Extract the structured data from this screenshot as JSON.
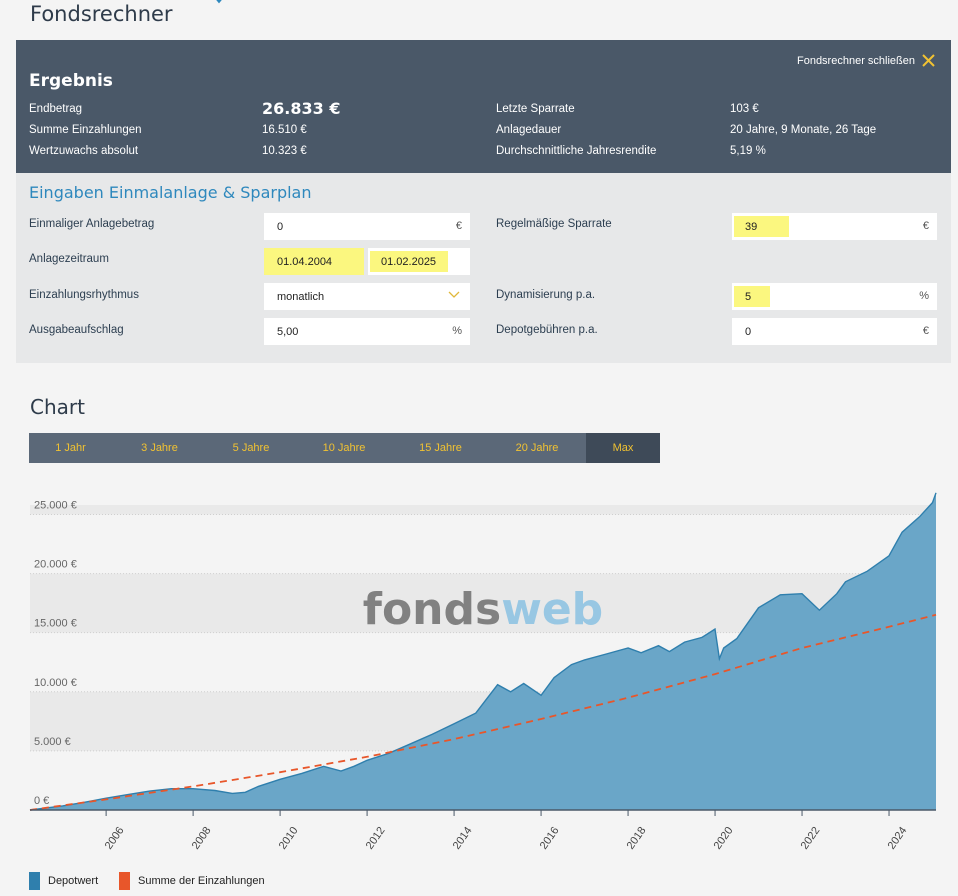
{
  "page": {
    "title": "Fondsrechner"
  },
  "result": {
    "title": "Ergebnis",
    "close_label": "Fondsrechner schließen",
    "endbetrag_label": "Endbetrag",
    "endbetrag_value": "26.833 €",
    "summe_label": "Summe Einzahlungen",
    "summe_value": "16.510 €",
    "wertzuwachs_label": "Wertzuwachs absolut",
    "wertzuwachs_value": "10.323 €",
    "letzte_label": "Letzte Sparrate",
    "letzte_value": "103 €",
    "dauer_label": "Anlagedauer",
    "dauer_value": "20 Jahre, 9 Monate, 26 Tage",
    "rendite_label": "Durchschnittliche Jahresrendite",
    "rendite_value": "5,19 %"
  },
  "inputs": {
    "title": "Eingaben Einmalanlage & Sparplan",
    "einmal_label": "Einmaliger Anlagebetrag",
    "einmal_value": "0",
    "einmal_unit": "€",
    "zeitraum_label": "Anlagezeitraum",
    "start_date": "01.04.2004",
    "end_date": "01.02.2025",
    "rhythmus_label": "Einzahlungsrhythmus",
    "rhythmus_value": "monatlich",
    "aufschlag_label": "Ausgabeaufschlag",
    "aufschlag_value": "5,00",
    "aufschlag_unit": "%",
    "sparrate_label": "Regelmäßige Sparrate",
    "sparrate_value": "39",
    "sparrate_unit": "€",
    "dynamik_label": "Dynamisierung p.a.",
    "dynamik_value": "5",
    "dynamik_unit": "%",
    "depot_label": "Depotgebühren p.a.",
    "depot_value": "0",
    "depot_unit": "€"
  },
  "chart_section": {
    "title": "Chart",
    "ranges": [
      "1 Jahr",
      "3 Jahre",
      "5 Jahre",
      "10 Jahre",
      "15 Jahre",
      "20 Jahre",
      "Max"
    ],
    "active_range": "Max",
    "watermark_dark": "fonds",
    "watermark_light": "web"
  },
  "colors": {
    "header_bg": "#4a5868",
    "accent_blue": "#2e88bd",
    "area_fill": "#6aa6c8",
    "area_line": "#2f7fad",
    "dashed_line": "#e8562a",
    "highlight": "#fbf77f",
    "range_text": "#f1c232"
  },
  "chart_data": {
    "type": "area",
    "x_ticks": [
      "2006",
      "2008",
      "2010",
      "2012",
      "2014",
      "2016",
      "2018",
      "2020",
      "2022",
      "2024"
    ],
    "y_ticks": [
      "0 €",
      "5.000 €",
      "10.000 €",
      "15.000 €",
      "20.000 €",
      "25.000 €"
    ],
    "ylim": [
      0,
      25800
    ],
    "xlim": [
      2004.25,
      2025.08
    ],
    "grid": true,
    "legend_position": "bottom-left",
    "series": [
      {
        "name": "Depotwert",
        "type": "area",
        "color": "#6aa6c8",
        "x": [
          2004.25,
          2005.0,
          2005.5,
          2006.0,
          2006.5,
          2007.0,
          2007.5,
          2008.0,
          2008.5,
          2008.9,
          2009.2,
          2009.5,
          2010.0,
          2010.5,
          2011.0,
          2011.4,
          2011.7,
          2012.0,
          2012.5,
          2013.0,
          2013.5,
          2014.0,
          2014.5,
          2015.0,
          2015.3,
          2015.6,
          2016.0,
          2016.3,
          2016.7,
          2017.0,
          2017.5,
          2018.0,
          2018.3,
          2018.7,
          2018.95,
          2019.3,
          2019.7,
          2020.0,
          2020.1,
          2020.2,
          2020.5,
          2021.0,
          2021.5,
          2022.0,
          2022.4,
          2022.8,
          2023.0,
          2023.5,
          2024.0,
          2024.3,
          2024.7,
          2025.0,
          2025.08
        ],
        "values": [
          0,
          350,
          650,
          1000,
          1300,
          1600,
          1800,
          1800,
          1650,
          1400,
          1500,
          2000,
          2600,
          3100,
          3700,
          3300,
          3700,
          4200,
          4800,
          5600,
          6400,
          7300,
          8200,
          10600,
          10000,
          10700,
          9700,
          11200,
          12300,
          12700,
          13200,
          13700,
          13300,
          13900,
          13400,
          14200,
          14600,
          15300,
          12800,
          13700,
          14500,
          17100,
          18200,
          18300,
          16900,
          18300,
          19300,
          20200,
          21500,
          23500,
          24800,
          26000,
          26833
        ]
      },
      {
        "name": "Summe der Einzahlungen",
        "type": "line-dashed",
        "color": "#e8562a",
        "x": [
          2004.25,
          2006.0,
          2008.0,
          2010.0,
          2012.0,
          2014.0,
          2016.0,
          2018.0,
          2020.0,
          2022.0,
          2024.0,
          2025.08
        ],
        "values": [
          0,
          900,
          2000,
          3200,
          4500,
          6000,
          7700,
          9500,
          11500,
          13700,
          15500,
          16510
        ]
      }
    ]
  }
}
